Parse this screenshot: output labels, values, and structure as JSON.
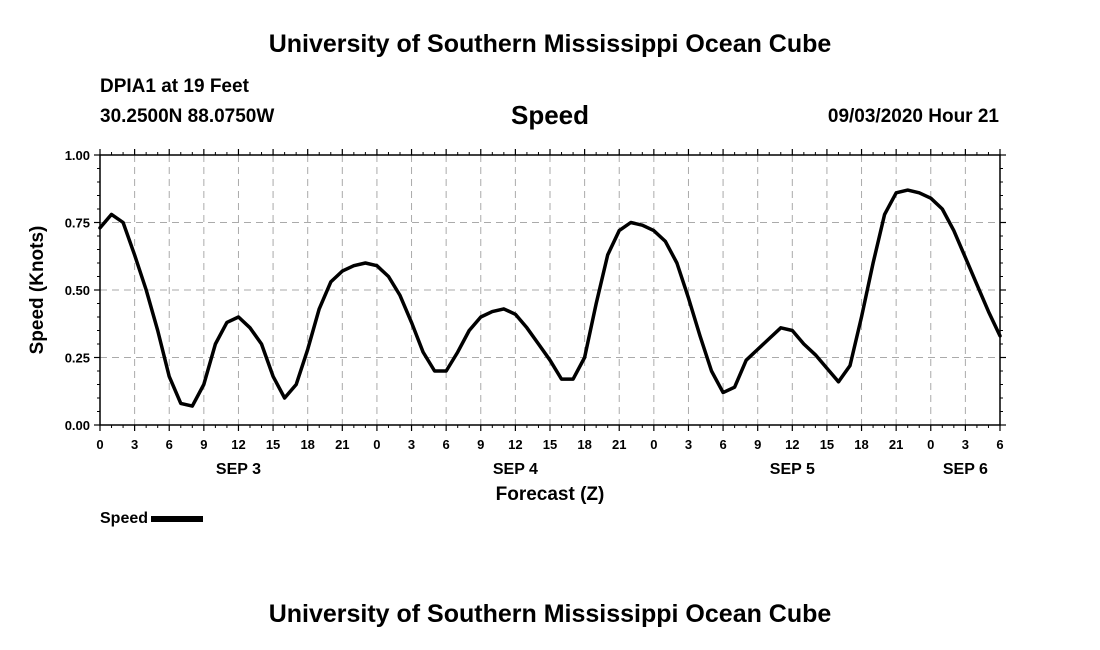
{
  "header": {
    "title_top": "University of Southern Mississippi Ocean Cube",
    "station": "DPIA1 at 19 Feet",
    "coords": "30.2500N 88.0750W",
    "variable": "Speed",
    "datetime": "09/03/2020 Hour 21",
    "title_bottom": "University of Southern Mississippi Ocean Cube"
  },
  "legend": {
    "label": "Speed",
    "color": "#000000"
  },
  "chart_data": {
    "type": "line",
    "title": "Speed",
    "xlabel": "Forecast (Z)",
    "ylabel": "Speed (Knots)",
    "xlim_hours": [
      0,
      78
    ],
    "ylim": [
      0,
      1
    ],
    "yticks": [
      "0.00",
      "0.25",
      "0.50",
      "0.75",
      "1.00"
    ],
    "xticks": [
      {
        "h": 0,
        "label": "0"
      },
      {
        "h": 3,
        "label": "3"
      },
      {
        "h": 6,
        "label": "6"
      },
      {
        "h": 9,
        "label": "9"
      },
      {
        "h": 12,
        "label": "12"
      },
      {
        "h": 15,
        "label": "15"
      },
      {
        "h": 18,
        "label": "18"
      },
      {
        "h": 21,
        "label": "21"
      },
      {
        "h": 24,
        "label": "0"
      },
      {
        "h": 27,
        "label": "3"
      },
      {
        "h": 30,
        "label": "6"
      },
      {
        "h": 33,
        "label": "9"
      },
      {
        "h": 36,
        "label": "12"
      },
      {
        "h": 39,
        "label": "15"
      },
      {
        "h": 42,
        "label": "18"
      },
      {
        "h": 45,
        "label": "21"
      },
      {
        "h": 48,
        "label": "0"
      },
      {
        "h": 51,
        "label": "3"
      },
      {
        "h": 54,
        "label": "6"
      },
      {
        "h": 57,
        "label": "9"
      },
      {
        "h": 60,
        "label": "12"
      },
      {
        "h": 63,
        "label": "15"
      },
      {
        "h": 66,
        "label": "18"
      },
      {
        "h": 69,
        "label": "21"
      },
      {
        "h": 72,
        "label": "0"
      },
      {
        "h": 75,
        "label": "3"
      },
      {
        "h": 78,
        "label": "6"
      }
    ],
    "date_labels": [
      {
        "h": 12,
        "label": "SEP 3"
      },
      {
        "h": 36,
        "label": "SEP 4"
      },
      {
        "h": 60,
        "label": "SEP 5"
      },
      {
        "h": 75,
        "label": "SEP 6"
      }
    ],
    "grid": true,
    "legend_position": "bottom-left",
    "series": [
      {
        "name": "Speed",
        "color": "#000000",
        "x": [
          0,
          1,
          2,
          3,
          4,
          5,
          6,
          7,
          8,
          9,
          10,
          11,
          12,
          13,
          14,
          15,
          16,
          17,
          18,
          19,
          20,
          21,
          22,
          23,
          24,
          25,
          26,
          27,
          28,
          29,
          30,
          31,
          32,
          33,
          34,
          35,
          36,
          37,
          38,
          39,
          40,
          41,
          42,
          43,
          44,
          45,
          46,
          47,
          48,
          49,
          50,
          51,
          52,
          53,
          54,
          55,
          56,
          57,
          58,
          59,
          60,
          61,
          62,
          63,
          64,
          65,
          66,
          67,
          68,
          69,
          70,
          71,
          72,
          73,
          74,
          75,
          76,
          77,
          78
        ],
        "values": [
          0.73,
          0.78,
          0.75,
          0.63,
          0.5,
          0.35,
          0.18,
          0.08,
          0.07,
          0.15,
          0.3,
          0.38,
          0.4,
          0.36,
          0.3,
          0.18,
          0.1,
          0.15,
          0.28,
          0.43,
          0.53,
          0.57,
          0.59,
          0.6,
          0.59,
          0.55,
          0.48,
          0.38,
          0.27,
          0.2,
          0.2,
          0.27,
          0.35,
          0.4,
          0.42,
          0.43,
          0.41,
          0.36,
          0.3,
          0.24,
          0.17,
          0.17,
          0.25,
          0.45,
          0.63,
          0.72,
          0.75,
          0.74,
          0.72,
          0.68,
          0.6,
          0.47,
          0.33,
          0.2,
          0.12,
          0.14,
          0.24,
          0.28,
          0.32,
          0.36,
          0.35,
          0.3,
          0.26,
          0.21,
          0.16,
          0.22,
          0.4,
          0.6,
          0.78,
          0.86,
          0.87,
          0.86,
          0.84,
          0.8,
          0.72,
          0.62,
          0.52,
          0.42,
          0.33
        ]
      }
    ]
  }
}
